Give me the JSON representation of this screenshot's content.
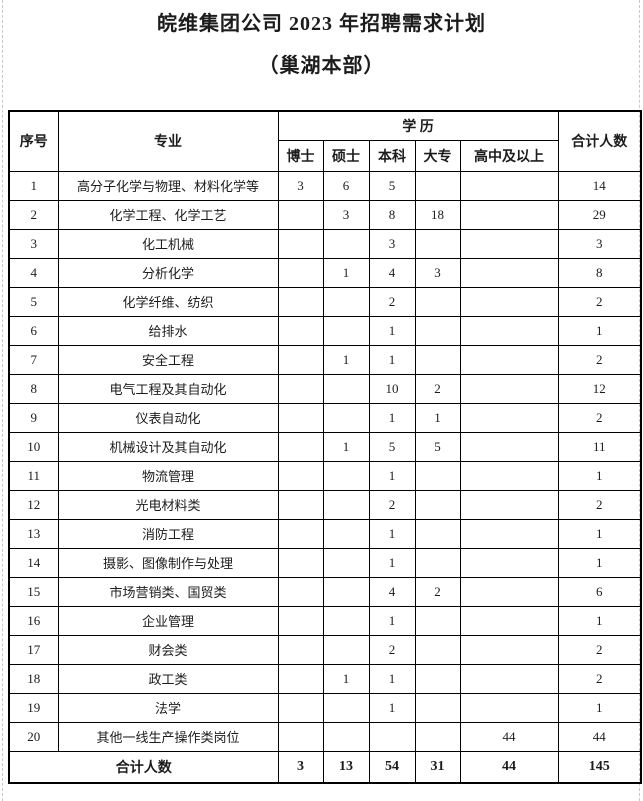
{
  "page": {
    "title_line1": "皖维集团公司 2023 年招聘需求计划",
    "title_line2": "（巢湖本部）"
  },
  "table": {
    "header": {
      "col_no": "序号",
      "col_major": "专业",
      "col_education": "学  历",
      "col_total": "合计人数",
      "levels": [
        "博士",
        "硕士",
        "本科",
        "大专",
        "高中及以上"
      ]
    },
    "rows": [
      {
        "no": "1",
        "major": "高分子化学与物理、材料化学等",
        "values": [
          "3",
          "6",
          "5",
          "",
          ""
        ],
        "total": "14"
      },
      {
        "no": "2",
        "major": "化学工程、化学工艺",
        "values": [
          "",
          "3",
          "8",
          "18",
          ""
        ],
        "total": "29"
      },
      {
        "no": "3",
        "major": "化工机械",
        "values": [
          "",
          "",
          "3",
          "",
          ""
        ],
        "total": "3"
      },
      {
        "no": "4",
        "major": "分析化学",
        "values": [
          "",
          "1",
          "4",
          "3",
          ""
        ],
        "total": "8"
      },
      {
        "no": "5",
        "major": "化学纤维、纺织",
        "values": [
          "",
          "",
          "2",
          "",
          ""
        ],
        "total": "2"
      },
      {
        "no": "6",
        "major": "给排水",
        "values": [
          "",
          "",
          "1",
          "",
          ""
        ],
        "total": "1"
      },
      {
        "no": "7",
        "major": "安全工程",
        "values": [
          "",
          "1",
          "1",
          "",
          ""
        ],
        "total": "2"
      },
      {
        "no": "8",
        "major": "电气工程及其自动化",
        "values": [
          "",
          "",
          "10",
          "2",
          ""
        ],
        "total": "12"
      },
      {
        "no": "9",
        "major": "仪表自动化",
        "values": [
          "",
          "",
          "1",
          "1",
          ""
        ],
        "total": "2"
      },
      {
        "no": "10",
        "major": "机械设计及其自动化",
        "values": [
          "",
          "1",
          "5",
          "5",
          ""
        ],
        "total": "11"
      },
      {
        "no": "11",
        "major": "物流管理",
        "values": [
          "",
          "",
          "1",
          "",
          ""
        ],
        "total": "1"
      },
      {
        "no": "12",
        "major": "光电材料类",
        "values": [
          "",
          "",
          "2",
          "",
          ""
        ],
        "total": "2"
      },
      {
        "no": "13",
        "major": "消防工程",
        "values": [
          "",
          "",
          "1",
          "",
          ""
        ],
        "total": "1"
      },
      {
        "no": "14",
        "major": "摄影、图像制作与处理",
        "values": [
          "",
          "",
          "1",
          "",
          ""
        ],
        "total": "1"
      },
      {
        "no": "15",
        "major": "市场营销类、国贸类",
        "values": [
          "",
          "",
          "4",
          "2",
          ""
        ],
        "total": "6"
      },
      {
        "no": "16",
        "major": "企业管理",
        "values": [
          "",
          "",
          "1",
          "",
          ""
        ],
        "total": "1"
      },
      {
        "no": "17",
        "major": "财会类",
        "values": [
          "",
          "",
          "2",
          "",
          ""
        ],
        "total": "2"
      },
      {
        "no": "18",
        "major": "政工类",
        "values": [
          "",
          "1",
          "1",
          "",
          ""
        ],
        "total": "2"
      },
      {
        "no": "19",
        "major": "法学",
        "values": [
          "",
          "",
          "1",
          "",
          ""
        ],
        "total": "1"
      },
      {
        "no": "20",
        "major": "其他一线生产操作类岗位",
        "values": [
          "",
          "",
          "",
          "",
          "44"
        ],
        "total": "44"
      }
    ],
    "footer": {
      "label": "合计人数",
      "values": [
        "3",
        "13",
        "54",
        "31",
        "44"
      ],
      "total": "145"
    }
  },
  "colors": {
    "border": "#000000",
    "text": "#1c1c1c",
    "page_edge": "#c8c8c8"
  }
}
